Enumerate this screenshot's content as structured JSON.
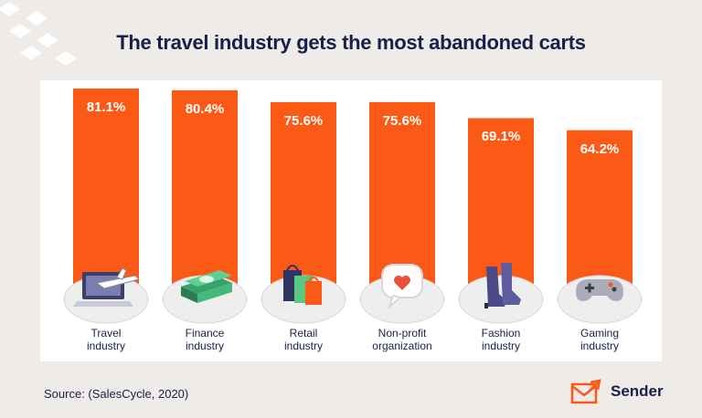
{
  "title": "The travel industry gets the most abandoned carts",
  "source": "Source: (SalesCycle, 2020)",
  "brand": "Sender",
  "colors": {
    "bar": "#fa5a15",
    "text": "#17204a",
    "background": "#efebe8"
  },
  "chart_data": {
    "type": "bar",
    "title": "The travel industry gets the most abandoned carts",
    "categories": [
      [
        "Travel",
        "industry"
      ],
      [
        "Finance",
        "industry"
      ],
      [
        "Retail",
        "industry"
      ],
      [
        "Non-profit",
        "organization"
      ],
      [
        "Fashion",
        "industry"
      ],
      [
        "Gaming",
        "industry"
      ]
    ],
    "values": [
      81.1,
      80.4,
      75.6,
      75.6,
      69.1,
      64.2
    ],
    "data_labels": [
      "81.1%",
      "80.4%",
      "75.6%",
      "75.6%",
      "69.1%",
      "64.2%"
    ],
    "icons": [
      "laptop-airplane-icon",
      "money-stack-icon",
      "shopping-bags-icon",
      "chat-heart-icon",
      "boots-icon",
      "gamepad-icon"
    ],
    "ylim": [
      0,
      100
    ],
    "grid": false,
    "legend": "none"
  }
}
